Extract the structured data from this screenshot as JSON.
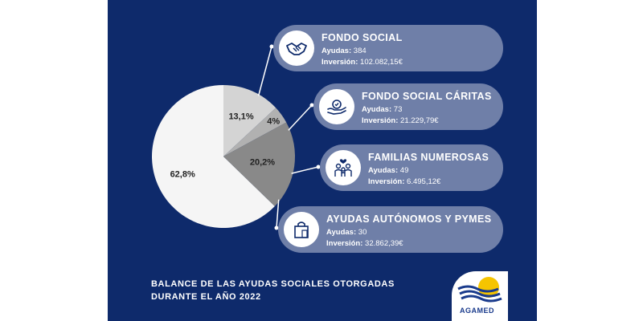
{
  "chart_data": {
    "type": "pie",
    "slices": [
      {
        "label": "FONDO SOCIAL",
        "value": 62.8,
        "display": "62,8%",
        "color": "#f5f5f5"
      },
      {
        "label": "FONDO SOCIAL CÁRITAS",
        "value": 13.1,
        "display": "13,1%",
        "color": "#d4d4d4"
      },
      {
        "label": "FAMILIAS NUMEROSAS",
        "value": 4.0,
        "display": "4%",
        "color": "#b1b1b1"
      },
      {
        "label": "AYUDAS AUTÓNOMOS Y PYMES",
        "value": 20.2,
        "display": "20,2%",
        "color": "#898989"
      }
    ]
  },
  "cards": [
    {
      "title": "FONDO SOCIAL",
      "ayudas_label": "Ayudas:",
      "ayudas": "384",
      "inversion_label": "Inversión:",
      "inversion": "102.082,15€",
      "icon": "handshake-icon"
    },
    {
      "title": "FONDO SOCIAL CÁRITAS",
      "ayudas_label": "Ayudas:",
      "ayudas": "73",
      "inversion_label": "Inversión:",
      "inversion": "21.229,79€",
      "icon": "hand-heart-icon"
    },
    {
      "title": "FAMILIAS NUMEROSAS",
      "ayudas_label": "Ayudas:",
      "ayudas": "49",
      "inversion_label": "Inversión:",
      "inversion": "6.495,12€",
      "icon": "family-icon"
    },
    {
      "title": "AYUDAS AUTÓNOMOS Y PYMES",
      "ayudas_label": "Ayudas:",
      "ayudas": "30",
      "inversion_label": "Inversión:",
      "inversion": "32.862,39€",
      "icon": "shopping-bag-icon"
    }
  ],
  "footer": {
    "line1": "BALANCE DE LAS AYUDAS SOCIALES OTORGADAS",
    "line2": "DURANTE EL AÑO 2022"
  },
  "logo": {
    "text": "AGAMED"
  },
  "colors": {
    "background": "#0e2a6b",
    "card": "#6f7fa8",
    "connector": "#ffffff"
  }
}
